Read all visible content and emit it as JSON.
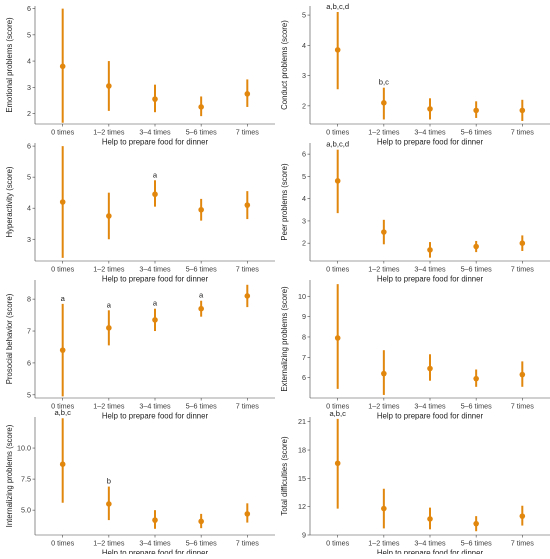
{
  "colors": {
    "point": "#E2870E",
    "axis": "#444444"
  },
  "chart_data": [
    {
      "type": "errorbar",
      "xlabel": "Help to prepare food for dinner",
      "ylabel": "Emotional problems (score)",
      "categories": [
        "0 times",
        "1–2 times",
        "3–4 times",
        "5–6 times",
        "7 times"
      ],
      "ylim": [
        1.6,
        6.1
      ],
      "yticks": [
        "2",
        "3",
        "4",
        "5",
        "6"
      ],
      "means": [
        3.8,
        3.05,
        2.55,
        2.25,
        2.75
      ],
      "lower": [
        1.65,
        2.1,
        2.05,
        1.9,
        2.25
      ],
      "upper": [
        6.0,
        4.0,
        3.1,
        2.65,
        3.3
      ],
      "labels": [
        "",
        "",
        "",
        "",
        ""
      ]
    },
    {
      "type": "errorbar",
      "xlabel": "Help to prepare food for dinner",
      "ylabel": "Conduct problems (score)",
      "categories": [
        "0 times",
        "1–2 times",
        "3–4 times",
        "5–6 times",
        "7 times"
      ],
      "ylim": [
        1.4,
        5.3
      ],
      "yticks": [
        "2",
        "3",
        "4",
        "5"
      ],
      "means": [
        3.85,
        2.1,
        1.9,
        1.85,
        1.85
      ],
      "lower": [
        2.55,
        1.55,
        1.55,
        1.6,
        1.5
      ],
      "upper": [
        5.1,
        2.6,
        2.25,
        2.15,
        2.2
      ],
      "labels": [
        "a,b,c,d",
        "b,c",
        "",
        "",
        ""
      ]
    },
    {
      "type": "errorbar",
      "xlabel": "Help to prepare food for dinner",
      "ylabel": "Hyperactivity (score)",
      "categories": [
        "0 times",
        "1–2 times",
        "3–4 times",
        "5–6 times",
        "7 times"
      ],
      "ylim": [
        2.3,
        6.1
      ],
      "yticks": [
        "3",
        "4",
        "5",
        "6"
      ],
      "means": [
        4.2,
        3.75,
        4.45,
        3.95,
        4.1
      ],
      "lower": [
        2.4,
        3.0,
        4.05,
        3.6,
        3.65
      ],
      "upper": [
        6.0,
        4.5,
        4.9,
        4.3,
        4.55
      ],
      "labels": [
        "",
        "",
        "a",
        "",
        ""
      ]
    },
    {
      "type": "errorbar",
      "xlabel": "Help to prepare food for dinner",
      "ylabel": "Peer problems (score)",
      "categories": [
        "0 times",
        "1–2 times",
        "3–4 times",
        "5–6 times",
        "7 times"
      ],
      "ylim": [
        1.2,
        6.5
      ],
      "yticks": [
        "2",
        "3",
        "4",
        "5",
        "6"
      ],
      "means": [
        4.8,
        2.5,
        1.7,
        1.85,
        2.0
      ],
      "lower": [
        3.35,
        1.95,
        1.35,
        1.6,
        1.65
      ],
      "upper": [
        6.2,
        3.05,
        2.05,
        2.1,
        2.35
      ],
      "labels": [
        "a,b,c,d",
        "",
        "",
        "",
        ""
      ]
    },
    {
      "type": "errorbar",
      "xlabel": "Help to prepare food for dinner",
      "ylabel": "Prosocial behavior (score)",
      "categories": [
        "0 times",
        "1–2 times",
        "3–4 times",
        "5–6 times",
        "7 times"
      ],
      "ylim": [
        4.9,
        8.6
      ],
      "yticks": [
        "5",
        "6",
        "7",
        "8"
      ],
      "means": [
        6.4,
        7.1,
        7.35,
        7.7,
        8.1
      ],
      "lower": [
        4.95,
        6.55,
        7.0,
        7.45,
        7.75
      ],
      "upper": [
        7.85,
        7.65,
        7.7,
        7.95,
        8.45
      ],
      "labels": [
        "a",
        "a",
        "a",
        "a",
        ""
      ]
    },
    {
      "type": "errorbar",
      "xlabel": "Help to prepare food for dinner",
      "ylabel": "Externalizing problems (score)",
      "categories": [
        "0 times",
        "1–2 times",
        "3–4 times",
        "5–6 times",
        "7 times"
      ],
      "ylim": [
        5.0,
        10.8
      ],
      "yticks": [
        "6",
        "7",
        "8",
        "9",
        "10"
      ],
      "means": [
        7.95,
        6.2,
        6.45,
        5.95,
        6.15
      ],
      "lower": [
        5.45,
        5.15,
        5.85,
        5.55,
        5.55
      ],
      "upper": [
        10.6,
        7.35,
        7.15,
        6.4,
        6.8
      ],
      "labels": [
        "",
        "",
        "",
        "",
        ""
      ]
    },
    {
      "type": "errorbar",
      "xlabel": "Help to prepare food for dinner",
      "ylabel": "Internalizing problems (score)",
      "categories": [
        "0 times",
        "1–2 times",
        "3–4 times",
        "5–6 times",
        "7 times"
      ],
      "ylim": [
        3.0,
        12.5
      ],
      "yticks": [
        "5.0",
        "7.5",
        "10.0"
      ],
      "means": [
        8.7,
        5.5,
        4.2,
        4.1,
        4.7
      ],
      "lower": [
        5.6,
        4.2,
        3.5,
        3.55,
        4.0
      ],
      "upper": [
        12.4,
        6.9,
        5.0,
        4.7,
        5.55
      ],
      "labels": [
        "a,b,c",
        "b",
        "",
        "",
        ""
      ]
    },
    {
      "type": "errorbar",
      "xlabel": "Help to prepare food for dinner",
      "ylabel": "Total difficulties (score)",
      "categories": [
        "0 times",
        "1–2 times",
        "3–4 times",
        "5–6 times",
        "7 times"
      ],
      "ylim": [
        9.0,
        21.5
      ],
      "yticks": [
        "9",
        "12",
        "15",
        "18",
        "21"
      ],
      "means": [
        16.6,
        11.8,
        10.7,
        10.2,
        11.0
      ],
      "lower": [
        11.8,
        9.7,
        9.6,
        9.4,
        10.0
      ],
      "upper": [
        21.3,
        13.9,
        11.9,
        11.0,
        12.1
      ],
      "labels": [
        "a,b,c",
        "",
        "",
        "",
        ""
      ]
    }
  ]
}
